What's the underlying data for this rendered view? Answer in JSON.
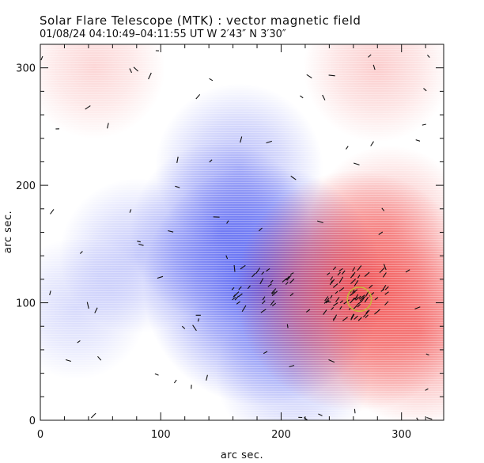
{
  "chart_data": {
    "type": "heatmap",
    "title": "Solar Flare Telescope (MTK) : vector magnetic field",
    "date": "01/08/24",
    "time_range": "04:10:49–04:11:55 UT",
    "position_w": "W 2′43″",
    "position_n": "N 3′30″",
    "xlabel": "arc sec.",
    "ylabel": "arc sec.",
    "xlim": [
      0,
      335
    ],
    "ylim": [
      0,
      320
    ],
    "x_ticks": [
      0,
      100,
      200,
      300
    ],
    "y_ticks": [
      0,
      100,
      200,
      300
    ],
    "colors": {
      "negative_polarity": "#3d4bf0",
      "positive_polarity": "#f03838",
      "vectors": "#111111",
      "marker": "#c8b43a"
    },
    "polarity_regions": [
      {
        "polarity": "negative",
        "x": 185,
        "y": 115,
        "strength": 1.0
      },
      {
        "polarity": "negative",
        "x": 150,
        "y": 160,
        "strength": 0.55
      },
      {
        "polarity": "negative",
        "x": 165,
        "y": 215,
        "strength": 0.45
      },
      {
        "polarity": "negative",
        "x": 80,
        "y": 140,
        "strength": 0.35
      },
      {
        "polarity": "negative",
        "x": 30,
        "y": 95,
        "strength": 0.25
      },
      {
        "polarity": "negative",
        "x": 210,
        "y": 40,
        "strength": 0.35
      },
      {
        "polarity": "positive",
        "x": 262,
        "y": 110,
        "strength": 1.0
      },
      {
        "polarity": "positive",
        "x": 315,
        "y": 75,
        "strength": 0.6
      },
      {
        "polarity": "positive",
        "x": 290,
        "y": 165,
        "strength": 0.4
      },
      {
        "polarity": "positive",
        "x": 280,
        "y": 300,
        "strength": 0.3
      },
      {
        "polarity": "positive",
        "x": 45,
        "y": 300,
        "strength": 0.25
      }
    ],
    "marker_circle": {
      "x": 265,
      "y": 103,
      "radius": 10
    }
  }
}
